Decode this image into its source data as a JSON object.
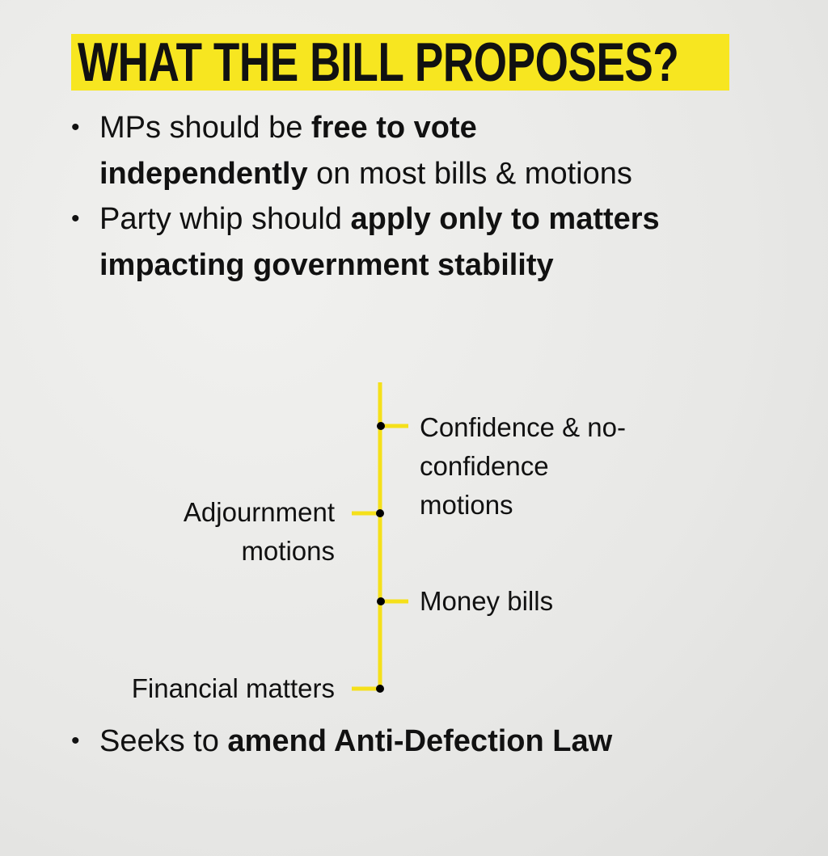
{
  "title": "WHAT THE BILL PROPOSES?",
  "colors": {
    "highlight": "#f7e620",
    "line": "#f5e01a",
    "text": "#111111"
  },
  "bullets": [
    {
      "pre": "MPs should be ",
      "bold": "free to vote independently",
      "post": " on most bills & motions"
    },
    {
      "pre": "Party whip should ",
      "bold": "apply only to matters impacting government stability",
      "post": ""
    }
  ],
  "diagram": {
    "right": [
      "Confidence & no-confidence motions",
      "Money bills"
    ],
    "left": [
      "Adjournment motions",
      "Financial matters"
    ]
  },
  "last_bullet": {
    "pre": "Seeks to ",
    "bold": "amend Anti-Defection Law"
  }
}
